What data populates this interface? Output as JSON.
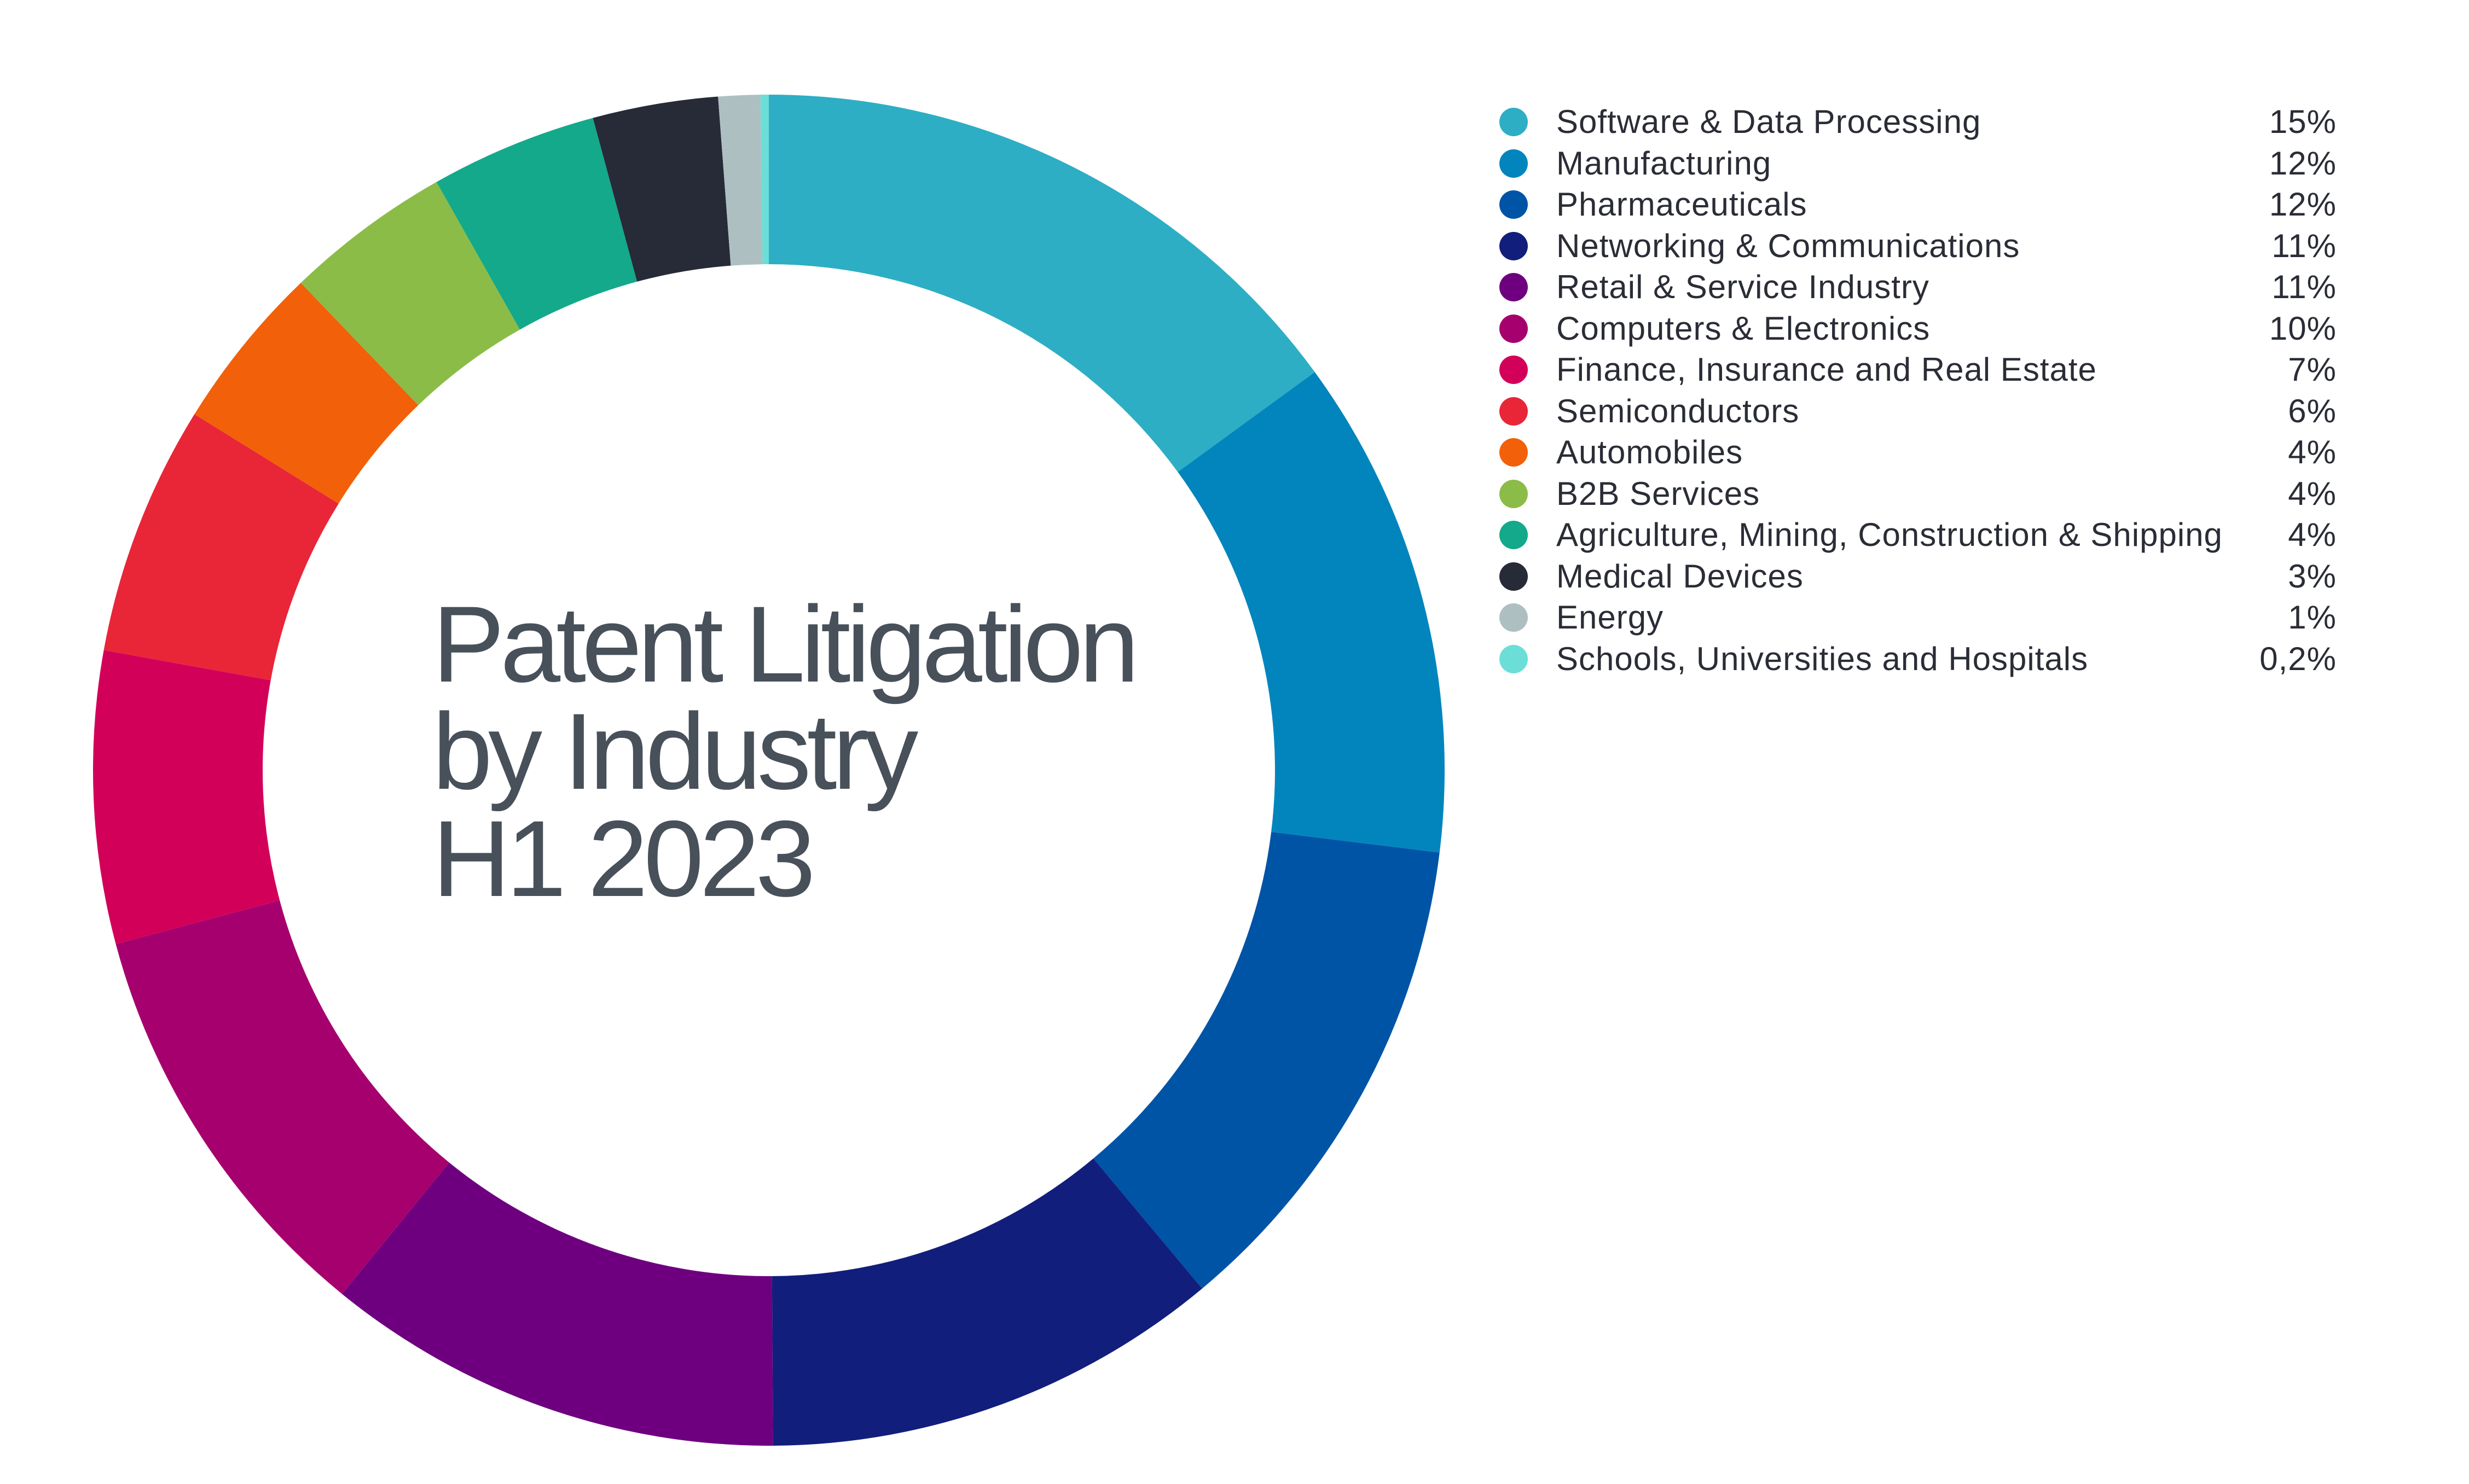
{
  "chart_data": {
    "type": "pie",
    "title_lines": [
      "Patent Litigation",
      "by Industry",
      "H1 2023"
    ],
    "legend_position": "right",
    "slices": [
      {
        "label": "Software & Data Processing",
        "value_label": "15%",
        "value": 15,
        "color": "#2daec4"
      },
      {
        "label": "Manufacturing",
        "value_label": "12%",
        "value": 12,
        "color": "#0285bd"
      },
      {
        "label": "Pharmaceuticals",
        "value_label": "12%",
        "value": 12,
        "color": "#0054a6"
      },
      {
        "label": "Networking & Communications",
        "value_label": "11%",
        "value": 11,
        "color": "#121e7c"
      },
      {
        "label": "Retail & Service Industry",
        "value_label": "11%",
        "value": 11,
        "color": "#6e0080"
      },
      {
        "label": "Computers & Electronics",
        "value_label": "10%",
        "value": 10,
        "color": "#a6006e"
      },
      {
        "label": "Finance, Insurance and Real Estate",
        "value_label": "7%",
        "value": 7,
        "color": "#d30059"
      },
      {
        "label": "Semiconductors",
        "value_label": "6%",
        "value": 6,
        "color": "#e92538"
      },
      {
        "label": "Automobiles",
        "value_label": "4%",
        "value": 4,
        "color": "#f2600a"
      },
      {
        "label": "B2B Services",
        "value_label": "4%",
        "value": 4,
        "color": "#8bbc47"
      },
      {
        "label": "Agriculture, Mining, Construction & Shipping",
        "value_label": "4%",
        "value": 4,
        "color": "#13a98a"
      },
      {
        "label": "Medical Devices",
        "value_label": "3%",
        "value": 3,
        "color": "#272a37"
      },
      {
        "label": "Energy",
        "value_label": "1%",
        "value": 1,
        "color": "#aebfc2"
      },
      {
        "label": "Schools, Universities and Hospitals",
        "value_label": "0,2%",
        "value": 0.2,
        "color": "#6bded8"
      }
    ]
  }
}
